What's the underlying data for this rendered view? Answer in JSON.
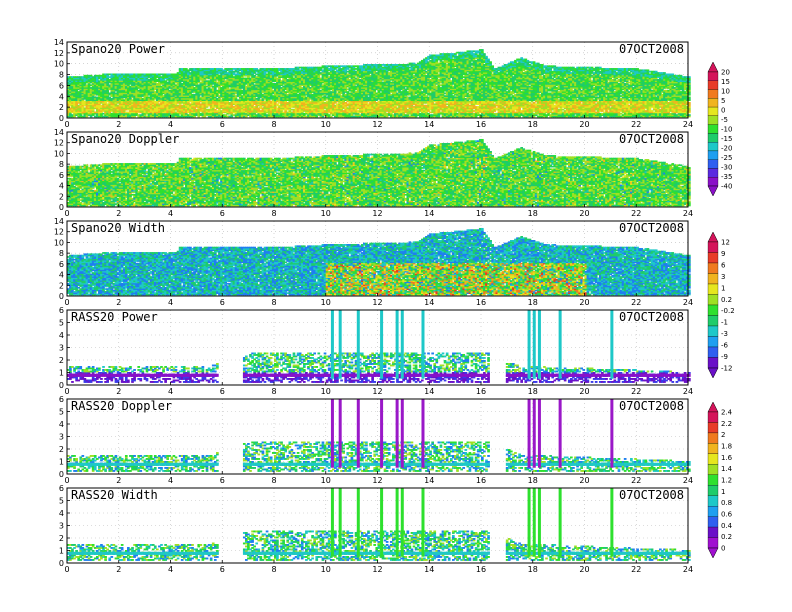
{
  "date": "07OCT2008",
  "colorbars": [
    {
      "labels": [
        "20",
        "15",
        "10",
        "5",
        "0",
        "-5",
        "-10",
        "-15",
        "-20",
        "-25",
        "-30",
        "-35",
        "-40"
      ]
    },
    {
      "labels": [
        "12",
        "9",
        "6",
        "3",
        "1",
        "0.2",
        "-0.2",
        "-1",
        "-3",
        "-6",
        "-9",
        "-12"
      ]
    },
    {
      "labels": [
        "2.4",
        "2.2",
        "2",
        "1.8",
        "1.6",
        "1.4",
        "1.2",
        "1",
        "0.8",
        "0.6",
        "0.4",
        "0.2",
        "0"
      ]
    }
  ],
  "chart_data": [
    {
      "type": "heatmap",
      "title": "Spano20 Power",
      "date": "07OCT2008",
      "xlim": [
        0,
        24
      ],
      "ylim": [
        0,
        14
      ],
      "x_ticks": [
        0,
        2,
        4,
        6,
        8,
        10,
        12,
        14,
        16,
        18,
        20,
        22,
        24
      ],
      "y_ticks": [
        0,
        2,
        4,
        6,
        8,
        10,
        12,
        14
      ],
      "echo_top": [
        [
          0,
          7.5
        ],
        [
          1.5,
          8
        ],
        [
          4.2,
          8
        ],
        [
          4.3,
          9
        ],
        [
          8,
          9
        ],
        [
          10,
          9.5
        ],
        [
          13.5,
          10
        ],
        [
          14,
          11.5
        ],
        [
          15,
          12
        ],
        [
          16,
          12.5
        ],
        [
          16.5,
          9
        ],
        [
          17.5,
          11
        ],
        [
          18.5,
          9.5
        ],
        [
          22,
          9
        ],
        [
          24,
          7.5
        ]
      ],
      "colorbar": 0
    },
    {
      "type": "heatmap",
      "title": "Spano20 Doppler",
      "date": "07OCT2008",
      "xlim": [
        0,
        24
      ],
      "ylim": [
        0,
        14
      ],
      "x_ticks": [
        0,
        2,
        4,
        6,
        8,
        10,
        12,
        14,
        16,
        18,
        20,
        22,
        24
      ],
      "y_ticks": [
        0,
        2,
        4,
        6,
        8,
        10,
        12,
        14
      ],
      "echo_top": [
        [
          0,
          7.5
        ],
        [
          1.5,
          8
        ],
        [
          4.2,
          8
        ],
        [
          4.3,
          9
        ],
        [
          8,
          9
        ],
        [
          10,
          9.5
        ],
        [
          13.5,
          10
        ],
        [
          14,
          11.5
        ],
        [
          15,
          12
        ],
        [
          16,
          12.5
        ],
        [
          16.5,
          9
        ],
        [
          17.5,
          11
        ],
        [
          18.5,
          9.5
        ],
        [
          22,
          9
        ],
        [
          24,
          7.5
        ]
      ],
      "colorbar": 0
    },
    {
      "type": "heatmap",
      "title": "Spano20 Width",
      "date": "07OCT2008",
      "xlim": [
        0,
        24
      ],
      "ylim": [
        0,
        14
      ],
      "x_ticks": [
        0,
        2,
        4,
        6,
        8,
        10,
        12,
        14,
        16,
        18,
        20,
        22,
        24
      ],
      "y_ticks": [
        0,
        2,
        4,
        6,
        8,
        10,
        12,
        14
      ],
      "echo_top": [
        [
          0,
          7.5
        ],
        [
          1.5,
          8
        ],
        [
          4.2,
          8
        ],
        [
          4.3,
          9
        ],
        [
          8,
          9
        ],
        [
          10,
          9.5
        ],
        [
          13.5,
          10
        ],
        [
          14,
          11.5
        ],
        [
          15,
          12
        ],
        [
          16,
          12.5
        ],
        [
          16.5,
          9
        ],
        [
          17.5,
          11
        ],
        [
          18.5,
          9.5
        ],
        [
          22,
          9
        ],
        [
          24,
          7.5
        ]
      ],
      "colorbar": 1
    },
    {
      "type": "heatmap",
      "title": "RASS20 Power",
      "date": "07OCT2008",
      "xlim": [
        0,
        24
      ],
      "ylim": [
        0,
        6
      ],
      "x_ticks": [
        0,
        2,
        4,
        6,
        8,
        10,
        12,
        14,
        16,
        18,
        20,
        22,
        24
      ],
      "y_ticks": [
        0,
        1,
        2,
        3,
        4,
        5,
        6
      ],
      "echo_top": [
        [
          0,
          1.5
        ],
        [
          5.5,
          1.5
        ],
        [
          7,
          2.5
        ],
        [
          16.3,
          2.5
        ],
        [
          17.5,
          1.5
        ],
        [
          24,
          1
        ]
      ],
      "spikes": [
        10.2,
        10.5,
        11.2,
        12.1,
        12.7,
        12.9,
        13.7,
        17.8,
        18.0,
        18.2,
        19.0,
        21.0
      ],
      "colorbar": 1
    },
    {
      "type": "heatmap",
      "title": "RASS20 Doppler",
      "date": "07OCT2008",
      "xlim": [
        0,
        24
      ],
      "ylim": [
        0,
        6
      ],
      "x_ticks": [
        0,
        2,
        4,
        6,
        8,
        10,
        12,
        14,
        16,
        18,
        20,
        22,
        24
      ],
      "y_ticks": [
        0,
        1,
        2,
        3,
        4,
        5,
        6
      ],
      "echo_top": [
        [
          0,
          1.5
        ],
        [
          5.5,
          1.5
        ],
        [
          7,
          2.5
        ],
        [
          16.3,
          2.5
        ],
        [
          17.5,
          1.5
        ],
        [
          24,
          1
        ]
      ],
      "spikes": [
        10.2,
        10.5,
        11.2,
        12.1,
        12.7,
        12.9,
        13.7,
        17.8,
        18.0,
        18.2,
        19.0,
        21.0
      ],
      "colorbar": 2
    },
    {
      "type": "heatmap",
      "title": "RASS20 Width",
      "date": "07OCT2008",
      "xlim": [
        0,
        24
      ],
      "ylim": [
        0,
        6
      ],
      "x_ticks": [
        0,
        2,
        4,
        6,
        8,
        10,
        12,
        14,
        16,
        18,
        20,
        22,
        24
      ],
      "y_ticks": [
        0,
        1,
        2,
        3,
        4,
        5,
        6
      ],
      "echo_top": [
        [
          0,
          1.5
        ],
        [
          5.5,
          1.5
        ],
        [
          7,
          2.5
        ],
        [
          16.3,
          2.5
        ],
        [
          17.5,
          1.5
        ],
        [
          24,
          1
        ]
      ],
      "spikes": [
        10.2,
        10.5,
        11.2,
        12.1,
        12.7,
        12.9,
        13.7,
        17.8,
        18.0,
        18.2,
        19.0,
        21.0
      ],
      "colorbar": 2
    }
  ]
}
